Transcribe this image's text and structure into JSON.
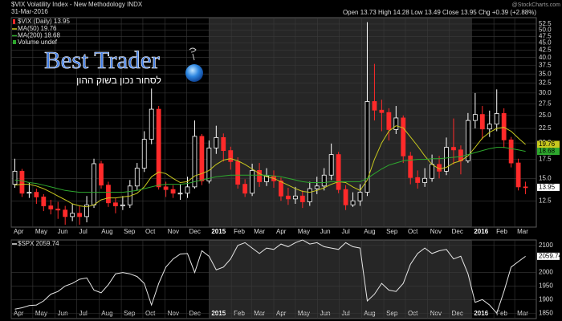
{
  "chart_data": [
    {
      "type": "candlestick",
      "title": "$VIX Volatility Index - New Methodology INDX",
      "date": "31-Mar-2016",
      "summary": "Open 13.73  High 14.28  Low 13.49  Close 13.95  Chg +0.39 (+2.88%)",
      "watermark": "@StockCharts.com",
      "log_scale": true,
      "grid": true,
      "xlim": [
        0,
        730
      ],
      "xticks": [
        {
          "value": 0,
          "label": "Apr"
        },
        {
          "value": 30,
          "label": "May"
        },
        {
          "value": 61,
          "label": "Jun"
        },
        {
          "value": 91,
          "label": "Jul"
        },
        {
          "value": 122,
          "label": "Aug"
        },
        {
          "value": 153,
          "label": "Sep"
        },
        {
          "value": 183,
          "label": "Oct"
        },
        {
          "value": 214,
          "label": "Nov"
        },
        {
          "value": 244,
          "label": "Dec"
        },
        {
          "value": 275,
          "label": "2015"
        },
        {
          "value": 306,
          "label": "Feb"
        },
        {
          "value": 334,
          "label": "Mar"
        },
        {
          "value": 365,
          "label": "Apr"
        },
        {
          "value": 395,
          "label": "May"
        },
        {
          "value": 426,
          "label": "Jun"
        },
        {
          "value": 456,
          "label": "Jul"
        },
        {
          "value": 487,
          "label": "Aug"
        },
        {
          "value": 518,
          "label": "Sep"
        },
        {
          "value": 548,
          "label": "Oct"
        },
        {
          "value": 579,
          "label": "Nov"
        },
        {
          "value": 609,
          "label": "Dec"
        },
        {
          "value": 640,
          "label": "2016"
        },
        {
          "value": 671,
          "label": "Feb"
        },
        {
          "value": 700,
          "label": "Mar"
        }
      ],
      "ylim": [
        10.1,
        55.3
      ],
      "yticks": [
        12.5,
        {
          "value": 15,
          "label": "15.0"
        },
        17.5,
        {
          "value": 20,
          "label": "20.0"
        },
        22.5,
        {
          "value": 25,
          "label": "25.0"
        },
        27.5,
        {
          "value": 30,
          "label": "30.0"
        },
        32.5,
        {
          "value": 35,
          "label": "35.0"
        },
        37.5,
        {
          "value": 40,
          "label": "40.0"
        },
        42.5,
        {
          "value": 45,
          "label": "45.0"
        },
        47.5,
        {
          "value": 50,
          "label": "50.0"
        },
        52.5
      ],
      "x": [
        5,
        15,
        25,
        35,
        45,
        55,
        65,
        75,
        85,
        95,
        105,
        115,
        125,
        135,
        145,
        155,
        165,
        175,
        185,
        195,
        205,
        215,
        225,
        235,
        245,
        255,
        265,
        275,
        285,
        295,
        305,
        315,
        325,
        335,
        345,
        355,
        365,
        375,
        385,
        395,
        405,
        415,
        425,
        435,
        445,
        455,
        465,
        475,
        485,
        495,
        505,
        515,
        525,
        535,
        545,
        555,
        565,
        575,
        585,
        595,
        605,
        615,
        625,
        635,
        645,
        655,
        665,
        675,
        685,
        695,
        705,
        715
      ],
      "ohlc": {
        "name": "$VIX (Daily) 13.95",
        "up_color": "#ffffff",
        "down_color": "#ff2a2a",
        "open": [
          14.3,
          15.9,
          13.3,
          13.4,
          12.9,
          12.0,
          11.7,
          11.6,
          11.0,
          11.3,
          11.0,
          12.1,
          16.9,
          14.2,
          12.3,
          12.0,
          12.1,
          14.1,
          16.3,
          20.6,
          26.3,
          14.0,
          13.7,
          13.3,
          13.3,
          14.0,
          21.1,
          14.7,
          19.2,
          20.9,
          18.8,
          17.2,
          14.3,
          13.3,
          16.0,
          14.6,
          15.3,
          14.7,
          13.0,
          12.7,
          13.0,
          12.4,
          13.8,
          14.1,
          15.4,
          18.2,
          13.7,
          12.1,
          12.5,
          13.4,
          28.0,
          26.1,
          25.6,
          22.3,
          24.5,
          18.0,
          15.1,
          14.5,
          15.0,
          16.8,
          15.9,
          19.3,
          18.9,
          17.3,
          24.0,
          25.2,
          22.4,
          23.3,
          25.4,
          20.5,
          17.0,
          14.0
        ],
        "high": [
          17.6,
          16.2,
          14.5,
          13.8,
          13.2,
          12.6,
          12.4,
          12.0,
          12.2,
          12.0,
          13.0,
          17.6,
          17.3,
          14.6,
          12.8,
          13.0,
          14.8,
          17.0,
          22.0,
          31.1,
          27.0,
          14.6,
          14.2,
          14.3,
          15.2,
          24.0,
          21.5,
          20.4,
          23.0,
          21.6,
          19.4,
          17.8,
          14.9,
          16.9,
          17.0,
          16.3,
          16.0,
          15.1,
          13.9,
          14.0,
          13.6,
          14.6,
          15.2,
          16.3,
          19.9,
          18.6,
          14.2,
          13.4,
          14.3,
          53.3,
          38.0,
          28.4,
          26.5,
          27.0,
          25.0,
          18.6,
          16.0,
          16.3,
          18.2,
          18.0,
          20.9,
          24.4,
          19.6,
          25.5,
          30.0,
          27.0,
          26.0,
          30.9,
          26.5,
          21.0,
          17.6,
          14.6
        ],
        "low": [
          13.9,
          12.9,
          12.8,
          12.2,
          11.5,
          11.2,
          10.8,
          10.3,
          10.6,
          10.3,
          10.5,
          11.8,
          13.8,
          11.9,
          11.3,
          11.6,
          11.8,
          13.6,
          15.8,
          19.8,
          13.7,
          12.9,
          12.8,
          12.6,
          12.8,
          13.8,
          14.2,
          14.4,
          18.3,
          17.2,
          16.1,
          13.8,
          12.9,
          13.0,
          14.0,
          14.1,
          13.9,
          12.5,
          12.1,
          12.2,
          11.8,
          12.0,
          13.2,
          13.6,
          14.8,
          13.3,
          11.6,
          11.9,
          12.0,
          13.0,
          24.0,
          22.0,
          20.4,
          21.5,
          17.0,
          14.3,
          13.8,
          14.0,
          14.6,
          15.0,
          15.4,
          16.8,
          15.5,
          17.0,
          22.5,
          20.6,
          21.0,
          22.0,
          19.2,
          16.4,
          13.6,
          13.2
        ],
        "close": [
          15.9,
          13.3,
          13.4,
          12.9,
          12.0,
          11.7,
          11.6,
          11.0,
          11.3,
          11.0,
          12.1,
          16.9,
          14.2,
          12.3,
          12.0,
          12.1,
          14.1,
          16.3,
          20.6,
          26.3,
          14.0,
          13.7,
          13.3,
          13.3,
          14.0,
          21.1,
          14.7,
          19.2,
          20.9,
          18.8,
          17.2,
          14.3,
          13.3,
          16.0,
          14.6,
          15.3,
          14.7,
          13.0,
          12.7,
          13.0,
          12.4,
          13.8,
          14.1,
          15.4,
          18.2,
          13.7,
          12.1,
          12.5,
          13.4,
          28.0,
          26.1,
          25.6,
          22.3,
          24.5,
          18.0,
          15.1,
          14.5,
          15.0,
          16.8,
          15.9,
          19.3,
          18.9,
          17.3,
          24.0,
          25.2,
          22.4,
          23.3,
          25.4,
          20.5,
          17.0,
          14.0,
          13.95
        ]
      },
      "series": [
        {
          "name": "MA(50) 19.76",
          "color": "#c8c81e",
          "values": [
            14.2,
            14.3,
            14.3,
            14.1,
            13.8,
            13.4,
            13.0,
            12.6,
            12.2,
            12.0,
            11.9,
            12.1,
            12.6,
            12.8,
            12.8,
            12.9,
            13.0,
            13.3,
            14.0,
            15.2,
            15.8,
            15.6,
            15.0,
            14.5,
            14.6,
            15.3,
            15.6,
            16.0,
            16.8,
            17.4,
            17.6,
            17.3,
            16.8,
            16.2,
            15.6,
            15.2,
            15.0,
            14.6,
            14.2,
            13.8,
            13.5,
            13.4,
            13.6,
            13.9,
            14.3,
            14.6,
            14.5,
            14.0,
            13.6,
            14.8,
            17.5,
            20.0,
            22.0,
            23.0,
            22.6,
            21.0,
            19.5,
            18.0,
            16.8,
            16.2,
            16.4,
            17.0,
            17.3,
            18.0,
            19.3,
            20.8,
            21.8,
            22.5,
            22.7,
            22.0,
            20.8,
            19.76
          ]
        },
        {
          "name": "MA(200) 18.68",
          "color": "#2ea82e",
          "values": [
            14.8,
            14.7,
            14.5,
            14.4,
            14.2,
            14.0,
            13.8,
            13.6,
            13.5,
            13.4,
            13.4,
            13.4,
            13.4,
            13.4,
            13.4,
            13.4,
            13.5,
            13.6,
            13.8,
            14.0,
            14.2,
            14.3,
            14.3,
            14.3,
            14.4,
            14.6,
            14.8,
            15.0,
            15.2,
            15.3,
            15.4,
            15.4,
            15.4,
            15.4,
            15.4,
            15.4,
            15.3,
            15.2,
            15.0,
            14.8,
            14.6,
            14.5,
            14.5,
            14.5,
            14.6,
            14.6,
            14.6,
            14.6,
            14.6,
            15.0,
            15.6,
            16.2,
            16.7,
            17.0,
            17.3,
            17.4,
            17.5,
            17.5,
            17.6,
            17.6,
            17.7,
            17.8,
            17.9,
            18.2,
            18.5,
            18.8,
            19.1,
            19.3,
            19.3,
            19.1,
            18.9,
            18.68
          ]
        }
      ],
      "volume_label": "Volume undef",
      "logo": {
        "title": "Best Trader",
        "subtitle": "לסחור נכון בשוק ההון"
      }
    },
    {
      "type": "line",
      "grid": true,
      "xlim": [
        0,
        730
      ],
      "x": [
        5,
        15,
        25,
        35,
        45,
        55,
        65,
        75,
        85,
        95,
        105,
        115,
        125,
        135,
        145,
        155,
        165,
        175,
        185,
        195,
        205,
        215,
        225,
        235,
        245,
        255,
        265,
        275,
        285,
        295,
        305,
        315,
        325,
        335,
        345,
        355,
        365,
        375,
        385,
        395,
        405,
        415,
        425,
        435,
        445,
        455,
        465,
        475,
        485,
        495,
        505,
        515,
        525,
        535,
        545,
        555,
        565,
        575,
        585,
        595,
        605,
        615,
        625,
        635,
        645,
        655,
        665,
        675,
        685,
        695,
        705,
        715
      ],
      "ylim": [
        1830,
        2120
      ],
      "yticks": [
        1850,
        1900,
        1950,
        2000,
        2100
      ],
      "series": [
        {
          "name": "$SPX 2059.74",
          "color": "#e6e6e6",
          "values": [
            1865,
            1870,
            1878,
            1880,
            1895,
            1920,
            1930,
            1950,
            1960,
            1975,
            1980,
            1935,
            1925,
            1955,
            1995,
            2000,
            1995,
            1985,
            1960,
            1880,
            1960,
            2020,
            2050,
            2068,
            2070,
            2000,
            2080,
            2060,
            2010,
            2020,
            2050,
            2100,
            2110,
            2090,
            2070,
            2090,
            2085,
            2105,
            2095,
            2110,
            2120,
            2105,
            2110,
            2095,
            2090,
            2085,
            2110,
            2095,
            2090,
            1895,
            1920,
            1960,
            1935,
            1930,
            1960,
            2030,
            2070,
            2090,
            2070,
            2080,
            2085,
            2050,
            2060,
            1995,
            1890,
            1900,
            1880,
            1850,
            1930,
            2020,
            2040,
            2059.74
          ]
        }
      ]
    }
  ]
}
